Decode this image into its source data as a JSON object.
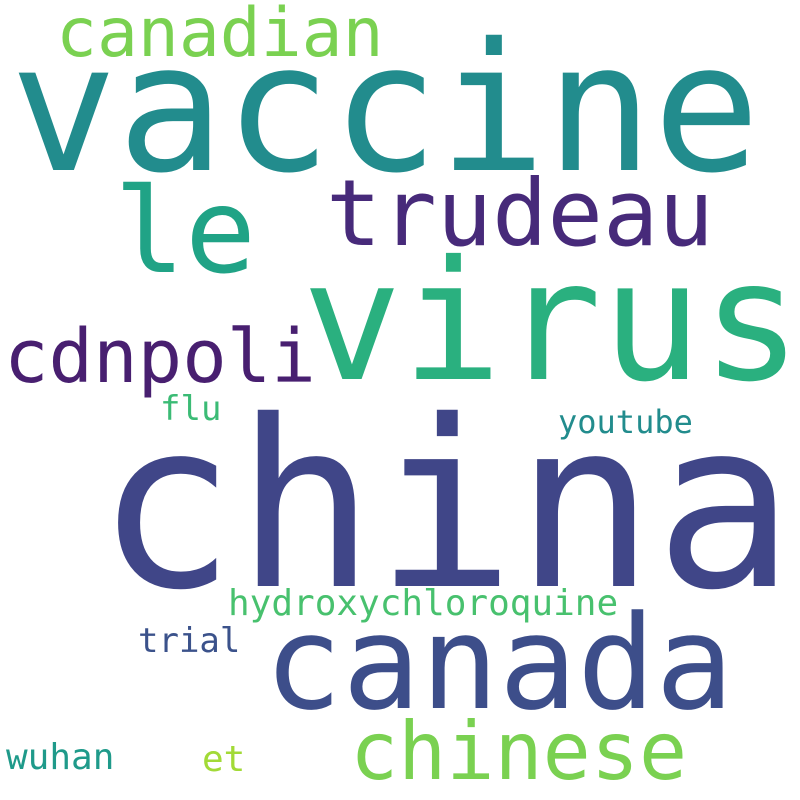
{
  "words": [
    {
      "key": "china",
      "text": "china",
      "color": "#404688"
    },
    {
      "key": "vaccine",
      "text": "vaccine",
      "color": "#228c8d"
    },
    {
      "key": "virus",
      "text": "virus",
      "color": "#2ab07f"
    },
    {
      "key": "canada",
      "text": "canada",
      "color": "#3d4e8a"
    },
    {
      "key": "le",
      "text": "le",
      "color": "#20a386"
    },
    {
      "key": "trudeau",
      "text": "trudeau",
      "color": "#472a7a"
    },
    {
      "key": "chinese",
      "text": "chinese",
      "color": "#7ad151"
    },
    {
      "key": "canadian",
      "text": "canadian",
      "color": "#7ad151"
    },
    {
      "key": "cdnpoli",
      "text": "cdnpoli",
      "color": "#481f70"
    },
    {
      "key": "hydroxychloroquine",
      "text": "hydroxychloroquine",
      "color": "#48c16e"
    },
    {
      "key": "trial",
      "text": "trial",
      "color": "#3b528b"
    },
    {
      "key": "wuhan",
      "text": "wuhan",
      "color": "#1f9a8a"
    },
    {
      "key": "youtube",
      "text": "youtube",
      "color": "#228c8d"
    },
    {
      "key": "flu",
      "text": "flu",
      "color": "#3bbb75"
    },
    {
      "key": "et",
      "text": "et",
      "color": "#a2da37"
    }
  ]
}
